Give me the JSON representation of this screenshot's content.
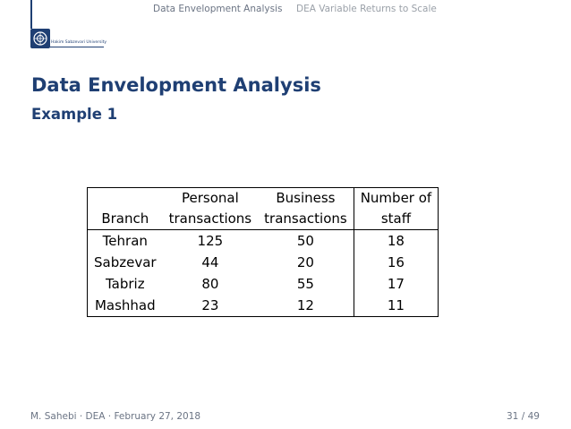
{
  "nav": {
    "section": "Data Envelopment Analysis",
    "subsection": "DEA Variable Returns to Scale"
  },
  "logo": {
    "text": "Hakim Sabzevari University"
  },
  "slide": {
    "title": "Data Envelopment Analysis",
    "subtitle": "Example 1"
  },
  "table": {
    "headers": [
      [
        "",
        "Branch"
      ],
      [
        "Personal",
        "transactions"
      ],
      [
        "Business",
        "transactions"
      ],
      [
        "Number of",
        "staff"
      ]
    ],
    "rows": [
      [
        "Tehran",
        "125",
        "50",
        "18"
      ],
      [
        "Sabzevar",
        "44",
        "20",
        "16"
      ],
      [
        "Tabriz",
        "80",
        "55",
        "17"
      ],
      [
        "Mashhad",
        "23",
        "12",
        "11"
      ]
    ]
  },
  "footer": {
    "left": "M. Sahebi · DEA · February 27, 2018",
    "page": "31 / 49"
  }
}
